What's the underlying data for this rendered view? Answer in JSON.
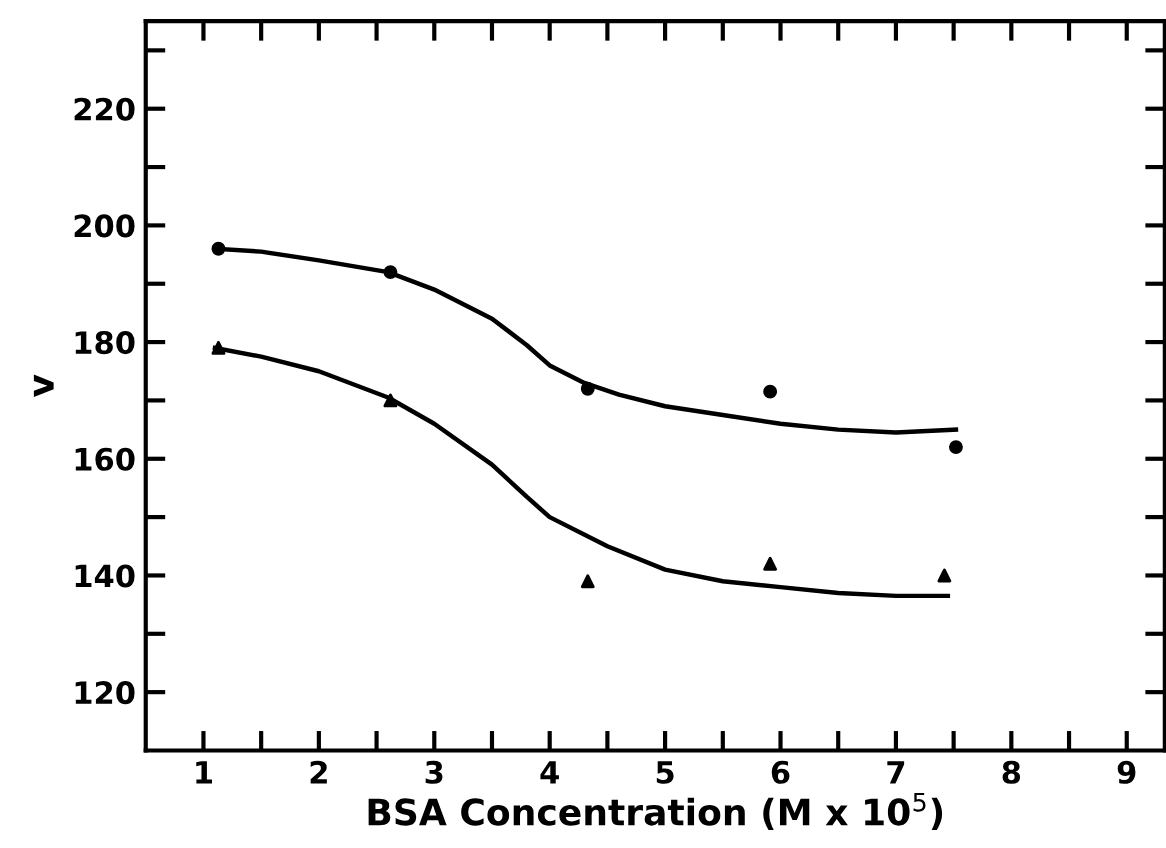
{
  "chart_data": {
    "type": "scatter",
    "xlabel": "BSA Concentration (M x 10$^{5}$)",
    "ylabel": "v",
    "xlim": [
      0.5,
      9.33
    ],
    "ylim": [
      110,
      235
    ],
    "xticks": [
      1,
      {
        "value": 1.5,
        "label": null
      },
      2,
      {
        "value": 2.5,
        "label": null
      },
      3,
      {
        "value": 3.5,
        "label": null
      },
      4,
      {
        "value": 4.5,
        "label": null
      },
      5,
      {
        "value": 5.5,
        "label": null
      },
      6,
      {
        "value": 6.5,
        "label": null
      },
      7,
      {
        "value": 7.5,
        "label": null
      },
      8,
      {
        "value": 8.5,
        "label": null
      },
      9
    ],
    "yticks": [
      120,
      {
        "value": 130,
        "label": null
      },
      140,
      {
        "value": 150,
        "label": null
      },
      160,
      {
        "value": 170,
        "label": null
      },
      180,
      {
        "value": 190,
        "label": null
      },
      200,
      {
        "value": 210,
        "label": null
      },
      220,
      {
        "value": 230,
        "label": null
      }
    ],
    "grid": false,
    "series": [
      {
        "marker": "circle",
        "color": "#000000",
        "x": [
          1.13,
          2.62,
          4.33,
          5.91,
          7.52
        ],
        "values": [
          196,
          192,
          172,
          171.5,
          162
        ]
      },
      {
        "marker": "triangle",
        "color": "#000000",
        "x": [
          1.13,
          2.62,
          4.33,
          5.91,
          7.42
        ],
        "values": [
          179,
          170,
          139,
          142,
          140
        ]
      },
      {
        "type": "line",
        "marker": "none",
        "color": "#000000",
        "x": [
          1.1,
          1.5,
          2,
          2.6,
          3,
          3.5,
          3.8,
          4,
          4.3,
          4.6,
          5,
          5.5,
          6,
          6.5,
          7,
          7.52
        ],
        "values": [
          196,
          195.5,
          194,
          192,
          189,
          184,
          179.5,
          176,
          173,
          171,
          169,
          167.5,
          166,
          165,
          164.5,
          165
        ]
      },
      {
        "type": "line",
        "marker": "none",
        "color": "#000000",
        "x": [
          1.1,
          1.5,
          2,
          2.6,
          3,
          3.5,
          3.8,
          4,
          4.5,
          5,
          5.5,
          6,
          6.5,
          7,
          7.45
        ],
        "values": [
          179,
          177.5,
          175,
          170.5,
          166,
          159,
          153.5,
          150,
          145,
          141,
          139,
          138,
          137,
          136.5,
          136.5
        ]
      }
    ]
  }
}
